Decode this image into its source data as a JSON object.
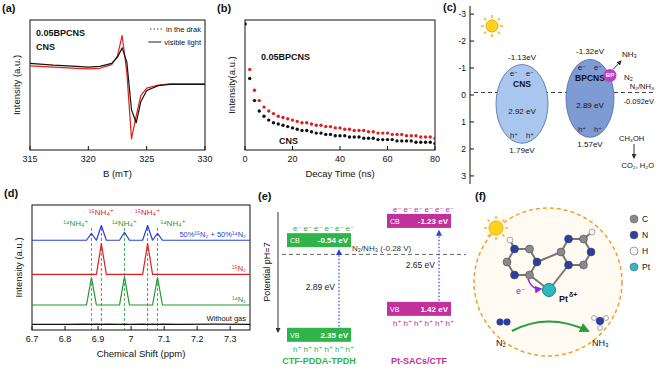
{
  "chart_data": [
    {
      "panel": "(a)",
      "type": "line",
      "x_label": "B (mT)",
      "y_label": "Intensity (a.u.)",
      "xlim": [
        315,
        330
      ],
      "xticks": [
        315,
        320,
        325,
        330
      ],
      "ylim": [
        -1.1,
        1.0
      ],
      "tick_labels": "x",
      "x": [
        315,
        317,
        319,
        320,
        321,
        322,
        322.5,
        322.9,
        323.3,
        323.7,
        324.1,
        324.5,
        325,
        326,
        327,
        328,
        330
      ],
      "series": [
        {
          "name": "0.05BPCNS",
          "color": "#e0201b",
          "values": [
            0.26,
            0.24,
            0.22,
            0.21,
            0.22,
            0.28,
            0.42,
            0.75,
            0.15,
            -0.92,
            -0.55,
            -0.22,
            -0.1,
            -0.05,
            -0.03,
            -0.03,
            -0.03
          ]
        },
        {
          "name": "CNS",
          "color": "#111111",
          "values": [
            0.3,
            0.27,
            0.25,
            0.24,
            0.25,
            0.3,
            0.4,
            0.55,
            0.32,
            -0.45,
            -0.66,
            -0.32,
            -0.14,
            -0.06,
            -0.04,
            -0.04,
            -0.04
          ]
        }
      ],
      "line_styles": [
        {
          "label": "in the drak",
          "line_style": "dotted"
        },
        {
          "label": "visible light",
          "line_style": "solid"
        }
      ]
    },
    {
      "panel": "(b)",
      "type": "scatter",
      "marker": "circle",
      "x_label": "Decay Time (ns)",
      "y_label": "Intensity(a.u.)",
      "xlim": [
        0,
        80
      ],
      "xticks": [
        0,
        20,
        40,
        60,
        80
      ],
      "ylim": [
        0,
        1
      ],
      "tick_labels": "x",
      "x": [
        0,
        2,
        4,
        6,
        8,
        10,
        12,
        14,
        16,
        18,
        20,
        22,
        24,
        26,
        28,
        30,
        32,
        34,
        36,
        38,
        40,
        42,
        44,
        46,
        48,
        50,
        52,
        54,
        56,
        58,
        60,
        62,
        64,
        66,
        68,
        70,
        72,
        74,
        76,
        78,
        80
      ],
      "series": [
        {
          "name": "0.05BPCNS",
          "color": "#e0201b",
          "values": [
            0.97,
            0.62,
            0.46,
            0.38,
            0.33,
            0.3,
            0.28,
            0.26,
            0.25,
            0.24,
            0.23,
            0.22,
            0.21,
            0.21,
            0.2,
            0.19,
            0.19,
            0.18,
            0.18,
            0.17,
            0.17,
            0.16,
            0.16,
            0.15,
            0.15,
            0.15,
            0.14,
            0.14,
            0.13,
            0.13,
            0.13,
            0.12,
            0.12,
            0.12,
            0.11,
            0.11,
            0.11,
            0.1,
            0.1,
            0.1,
            0.09
          ]
        },
        {
          "name": "CNS",
          "color": "#111111",
          "values": [
            0.97,
            0.55,
            0.38,
            0.3,
            0.26,
            0.23,
            0.21,
            0.2,
            0.19,
            0.18,
            0.17,
            0.16,
            0.15,
            0.15,
            0.14,
            0.13,
            0.13,
            0.12,
            0.12,
            0.11,
            0.11,
            0.11,
            0.1,
            0.1,
            0.1,
            0.09,
            0.09,
            0.09,
            0.08,
            0.08,
            0.08,
            0.08,
            0.07,
            0.07,
            0.07,
            0.07,
            0.06,
            0.06,
            0.06,
            0.06,
            0.05
          ]
        }
      ]
    },
    {
      "panel": "(d)",
      "type": "line",
      "x_label": "Chemical Shift (ppm)",
      "y_label": "Intensity (a.u.)",
      "xlim": [
        6.7,
        7.36
      ],
      "xticks": [
        6.7,
        6.8,
        6.9,
        7.0,
        7.1,
        7.2,
        7.3
      ],
      "ylim": [
        0,
        11
      ],
      "tick_labels": "x",
      "x": [
        6.7,
        6.8,
        6.865,
        6.88,
        6.895,
        6.91,
        6.925,
        6.965,
        6.98,
        6.995,
        7.035,
        7.05,
        7.065,
        7.08,
        7.095,
        7.15,
        7.25,
        7.36
      ],
      "series": [
        {
          "name": "50%¹⁵N₂ + 50%¹⁴N₂",
          "color": "#2b3fd6",
          "values": [
            7.9,
            7.9,
            7.9,
            8.5,
            7.9,
            9.2,
            7.9,
            7.9,
            8.6,
            7.9,
            7.9,
            9.2,
            7.9,
            8.5,
            7.9,
            7.9,
            7.9,
            7.9
          ]
        },
        {
          "name": "¹⁵N₂",
          "color": "#e02020",
          "values": [
            4.9,
            4.9,
            4.9,
            4.9,
            4.9,
            7.6,
            4.9,
            4.9,
            4.9,
            4.9,
            4.9,
            7.6,
            4.9,
            4.9,
            4.9,
            4.9,
            4.9,
            4.9
          ]
        },
        {
          "name": "¹⁴N₂",
          "color": "#1f9a2e",
          "values": [
            2.2,
            2.2,
            2.2,
            4.6,
            2.2,
            2.2,
            2.2,
            2.2,
            4.7,
            2.2,
            2.2,
            2.2,
            2.2,
            4.6,
            2.2,
            2.2,
            2.2,
            2.2
          ]
        },
        {
          "name": "Without gas",
          "color": "#111111",
          "values": [
            0.5,
            0.5,
            0.52,
            0.5,
            0.52,
            0.5,
            0.52,
            0.5,
            0.52,
            0.5,
            0.52,
            0.5,
            0.52,
            0.5,
            0.52,
            0.5,
            0.52,
            0.5
          ]
        }
      ],
      "peaks": [
        {
          "label": "¹⁴NH₄⁺",
          "shift": 6.88,
          "color": "#1f9a2e"
        },
        {
          "label": "¹⁵NH₄⁺",
          "shift": 6.91,
          "color": "#e02020"
        },
        {
          "label": "¹⁴NH₄⁺",
          "shift": 6.98,
          "color": "#1f9a2e"
        },
        {
          "label": "¹⁵NH₄⁺",
          "shift": 7.05,
          "color": "#e02020"
        },
        {
          "label": "¹⁴NH₄⁺",
          "shift": 7.08,
          "color": "#1f9a2e"
        }
      ]
    }
  ],
  "band_diagram_c": {
    "panel": "(c)",
    "ylim": [
      -3.3,
      3.3
    ],
    "yticks": [
      -3,
      -2,
      -1,
      0,
      1,
      2,
      3
    ],
    "electron": "e⁻",
    "hole": "h⁺",
    "redox": {
      "value": -0.092,
      "name": "N₂/NH₃",
      "label": "-0.092eV"
    },
    "materials": [
      {
        "name": "CNS",
        "color": "#a8c6ee",
        "cb": -1.13,
        "cb_label": "-1.13eV",
        "vb": 1.79,
        "vb_label": "1.79eV",
        "gap_label": "2.92 eV"
      },
      {
        "name": "BPCNS",
        "color": "#7f9bd3",
        "cb": -1.32,
        "cb_label": "-1.32eV",
        "vb": 1.57,
        "vb_label": "1.57eV",
        "gap_label": "2.89 eV"
      }
    ],
    "cocatalyst": "BP",
    "reduction": {
      "reactant": "N₂",
      "product": "NH₃"
    },
    "oxidation": {
      "reactant": "CH₃OH",
      "products": "CO₂, H₂O"
    }
  },
  "band_diagram_e": {
    "panel": "(e)",
    "axis_label": "Potential pH=7",
    "vlim": [
      -1.8,
      2.5
    ],
    "electron": "e⁻",
    "hole": "h⁺",
    "redox": {
      "value": -0.28,
      "label": "N₂/NH₃ (-0.28 V)"
    },
    "materials": [
      {
        "name": "CTF-PDDA-TPDH",
        "color": "#2fb34a",
        "cb": -0.54,
        "cb_label": "CB",
        "cb_value_label": "-0.54 eV",
        "vb": 2.35,
        "vb_label": "VB",
        "vb_value_label": "2.35 eV",
        "gap_label": "2.89 eV"
      },
      {
        "name": "Pt-SACs/CTF",
        "color": "#c2309b",
        "cb": -1.23,
        "cb_label": "CB",
        "cb_value_label": "-1.23 eV",
        "vb": 1.42,
        "vb_label": "VB",
        "vb_value_label": "1.42 eV",
        "gap_label": "2.65 eV"
      }
    ]
  },
  "scheme_f": {
    "panel": "(f)",
    "legend": [
      {
        "label": "C",
        "color": "#8a8a8a"
      },
      {
        "label": "N",
        "color": "#2c3f9e"
      },
      {
        "label": "H",
        "color": "#f4f4f4"
      },
      {
        "label": "Pt",
        "color": "#2fb8c0"
      }
    ],
    "metal": "Pt",
    "charge": "δ+",
    "electron": "e⁻",
    "reactant": "N₂",
    "product": "NH₃"
  }
}
